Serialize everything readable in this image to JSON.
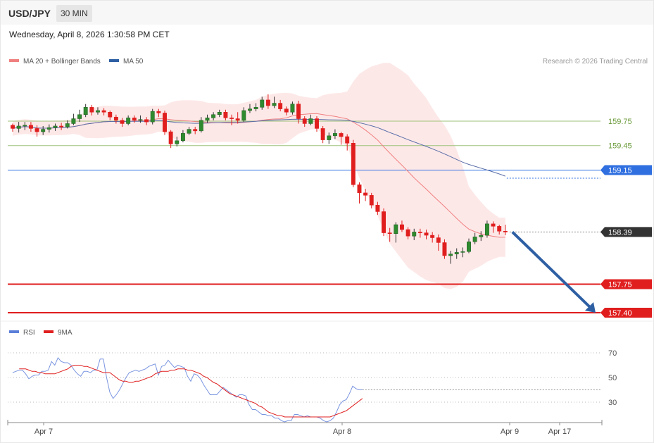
{
  "header": {
    "pair": "USD/JPY",
    "timeframe": "30 MIN",
    "datetime": "Wednesday, April 8, 2026 1:30:58 PM CET"
  },
  "legend_main": [
    {
      "label": "MA 20 + Bollinger Bands",
      "color": "#f08080"
    },
    {
      "label": "MA 50",
      "color": "#2e5fa3"
    }
  ],
  "legend_rsi": [
    {
      "label": "RSI",
      "color": "#5b7fd9"
    },
    {
      "label": "9MA",
      "color": "#e02020"
    }
  ],
  "credit": "Research © 2026 Trading Central",
  "chart_data": {
    "type": "candlestick",
    "price_range": [
      157.2,
      160.7
    ],
    "levels": [
      {
        "value": 159.75,
        "label": "159.75",
        "kind": "resistance-minor",
        "color": "#9ec27a"
      },
      {
        "value": 159.45,
        "label": "159.45",
        "kind": "resistance-minor",
        "color": "#9ec27a"
      },
      {
        "value": 159.15,
        "label": "159.15",
        "kind": "pivot",
        "color": "#2f6fe0"
      },
      {
        "value": 158.39,
        "label": "158.39",
        "kind": "last-price",
        "color": "#333333"
      },
      {
        "value": 157.75,
        "label": "157.75",
        "kind": "support",
        "color": "#e01e1e"
      },
      {
        "value": 157.4,
        "label": "157.40",
        "kind": "support",
        "color": "#e01e1e"
      }
    ],
    "candles": [
      [
        159.7,
        159.66,
        159.72,
        159.62
      ],
      [
        159.66,
        159.69,
        159.74,
        159.61
      ],
      [
        159.69,
        159.7,
        159.74,
        159.64
      ],
      [
        159.7,
        159.66,
        159.74,
        159.62
      ],
      [
        159.66,
        159.62,
        159.7,
        159.56
      ],
      [
        159.62,
        159.65,
        159.69,
        159.58
      ],
      [
        159.65,
        159.67,
        159.71,
        159.61
      ],
      [
        159.67,
        159.69,
        159.72,
        159.63
      ],
      [
        159.69,
        159.68,
        159.73,
        159.64
      ],
      [
        159.68,
        159.72,
        159.76,
        159.66
      ],
      [
        159.72,
        159.78,
        159.84,
        159.7
      ],
      [
        159.78,
        159.83,
        159.89,
        159.74
      ],
      [
        159.83,
        159.92,
        159.96,
        159.8
      ],
      [
        159.92,
        159.86,
        159.95,
        159.82
      ],
      [
        159.86,
        159.88,
        159.92,
        159.83
      ],
      [
        159.88,
        159.86,
        159.91,
        159.82
      ],
      [
        159.86,
        159.8,
        159.88,
        159.76
      ],
      [
        159.8,
        159.76,
        159.83,
        159.72
      ],
      [
        159.76,
        159.72,
        159.79,
        159.68
      ],
      [
        159.72,
        159.79,
        159.82,
        159.7
      ],
      [
        159.79,
        159.76,
        159.82,
        159.73
      ],
      [
        159.76,
        159.77,
        159.82,
        159.73
      ],
      [
        159.77,
        159.74,
        159.8,
        159.7
      ],
      [
        159.74,
        159.87,
        159.9,
        159.71
      ],
      [
        159.87,
        159.85,
        159.9,
        159.8
      ],
      [
        159.85,
        159.62,
        159.88,
        159.58
      ],
      [
        159.62,
        159.47,
        159.64,
        159.42
      ],
      [
        159.47,
        159.51,
        159.56,
        159.44
      ],
      [
        159.51,
        159.6,
        159.64,
        159.49
      ],
      [
        159.6,
        159.65,
        159.68,
        159.58
      ],
      [
        159.65,
        159.63,
        159.68,
        159.59
      ],
      [
        159.63,
        159.76,
        159.8,
        159.61
      ],
      [
        159.76,
        159.79,
        159.83,
        159.73
      ],
      [
        159.79,
        159.83,
        159.86,
        159.76
      ],
      [
        159.83,
        159.86,
        159.89,
        159.8
      ],
      [
        159.86,
        159.79,
        159.89,
        159.76
      ],
      [
        159.79,
        159.78,
        159.83,
        159.7
      ],
      [
        159.78,
        159.76,
        159.86,
        159.72
      ],
      [
        159.76,
        159.88,
        159.92,
        159.74
      ],
      [
        159.88,
        159.9,
        159.96,
        159.85
      ],
      [
        159.9,
        159.92,
        159.97,
        159.87
      ],
      [
        159.92,
        160.01,
        160.05,
        159.89
      ],
      [
        160.01,
        159.94,
        160.08,
        159.9
      ],
      [
        159.94,
        159.97,
        160.05,
        159.91
      ],
      [
        159.97,
        159.9,
        160.01,
        159.87
      ],
      [
        159.9,
        159.86,
        159.93,
        159.82
      ],
      [
        159.86,
        159.96,
        159.99,
        159.83
      ],
      [
        159.96,
        159.78,
        160.0,
        159.72
      ],
      [
        159.78,
        159.72,
        159.81,
        159.68
      ],
      [
        159.72,
        159.78,
        159.83,
        159.7
      ],
      [
        159.78,
        159.66,
        159.81,
        159.62
      ],
      [
        159.66,
        159.52,
        159.69,
        159.48
      ],
      [
        159.52,
        159.57,
        159.61,
        159.47
      ],
      [
        159.57,
        159.6,
        159.65,
        159.53
      ],
      [
        159.6,
        159.56,
        159.62,
        159.46
      ],
      [
        159.56,
        159.48,
        159.59,
        159.39
      ],
      [
        159.48,
        158.97,
        159.52,
        158.94
      ],
      [
        158.97,
        158.87,
        159.0,
        158.74
      ],
      [
        158.87,
        158.84,
        158.92,
        158.77
      ],
      [
        158.84,
        158.72,
        158.87,
        158.68
      ],
      [
        158.72,
        158.64,
        158.76,
        158.6
      ],
      [
        158.64,
        158.38,
        158.68,
        158.34
      ],
      [
        158.38,
        158.37,
        158.44,
        158.27
      ],
      [
        158.37,
        158.48,
        158.51,
        158.26
      ],
      [
        158.48,
        158.42,
        158.53,
        158.39
      ],
      [
        158.42,
        158.34,
        158.45,
        158.3
      ],
      [
        158.34,
        158.39,
        158.43,
        158.29
      ],
      [
        158.39,
        158.38,
        158.43,
        158.32
      ],
      [
        158.38,
        158.35,
        158.42,
        158.3
      ],
      [
        158.35,
        158.32,
        158.39,
        158.26
      ],
      [
        158.32,
        158.26,
        158.36,
        158.16
      ],
      [
        158.26,
        158.1,
        158.3,
        158.06
      ],
      [
        158.1,
        158.12,
        158.16,
        158.0
      ],
      [
        158.12,
        158.14,
        158.19,
        158.06
      ],
      [
        158.14,
        158.15,
        158.2,
        158.08
      ],
      [
        158.15,
        158.27,
        158.31,
        158.13
      ],
      [
        158.27,
        158.33,
        158.38,
        158.24
      ],
      [
        158.33,
        158.35,
        158.4,
        158.28
      ],
      [
        158.35,
        158.49,
        158.53,
        158.32
      ],
      [
        158.49,
        158.46,
        158.52,
        158.38
      ],
      [
        158.46,
        158.4,
        158.48,
        158.36
      ],
      [
        158.4,
        158.39,
        158.48,
        158.35
      ]
    ],
    "forecast": {
      "from": 158.39,
      "to": 157.4
    },
    "rsi": {
      "levels": [
        70,
        50,
        30
      ],
      "rsi": [
        54,
        55,
        56,
        56,
        53,
        49,
        51,
        52,
        52,
        55,
        55,
        56,
        63,
        60,
        66,
        63,
        62,
        62,
        60,
        56,
        53,
        51,
        55,
        55,
        54,
        56,
        56,
        65,
        65,
        50,
        38,
        33,
        36,
        40,
        45,
        50,
        54,
        55,
        56,
        55,
        56,
        57,
        59,
        60,
        61,
        52,
        59,
        60,
        64,
        61,
        58,
        60,
        59,
        58,
        51,
        47,
        53,
        52,
        49,
        44,
        40,
        36,
        36,
        36,
        39,
        42,
        40,
        38,
        36,
        34,
        36,
        36,
        35,
        28,
        24,
        24,
        22,
        20,
        20,
        19,
        19,
        17,
        17,
        15,
        14,
        15,
        15,
        20,
        20,
        19,
        18,
        19,
        18,
        18,
        18,
        17,
        15,
        14,
        15,
        17,
        22,
        28,
        31,
        32,
        37,
        43,
        41,
        40,
        40
      ],
      "ma9": [
        57,
        57,
        57,
        56,
        55,
        55,
        54,
        54,
        53,
        53,
        53,
        53,
        54,
        55,
        56,
        57,
        59,
        60,
        60,
        60,
        59,
        59,
        58,
        57,
        56,
        55,
        54,
        54,
        54,
        52,
        50,
        48,
        47,
        47,
        46,
        46,
        47,
        47,
        48,
        49,
        50,
        51,
        53,
        54,
        55,
        55,
        55,
        56,
        56,
        57,
        57,
        57,
        56,
        56,
        55,
        54,
        53,
        51,
        50,
        48,
        46,
        45,
        43,
        41,
        39,
        37,
        36,
        35,
        34,
        33,
        32,
        31,
        30,
        29,
        27,
        26,
        24,
        22,
        21,
        20,
        19,
        19,
        18,
        18,
        18,
        18,
        18,
        18,
        18,
        18,
        18,
        18,
        18,
        18,
        18,
        18,
        18,
        19,
        20,
        21,
        22,
        23,
        25,
        27,
        29,
        31,
        33
      ]
    },
    "x_ticks": [
      "Apr 7",
      "Apr 8",
      "Apr 9",
      "Apr 17"
    ]
  }
}
